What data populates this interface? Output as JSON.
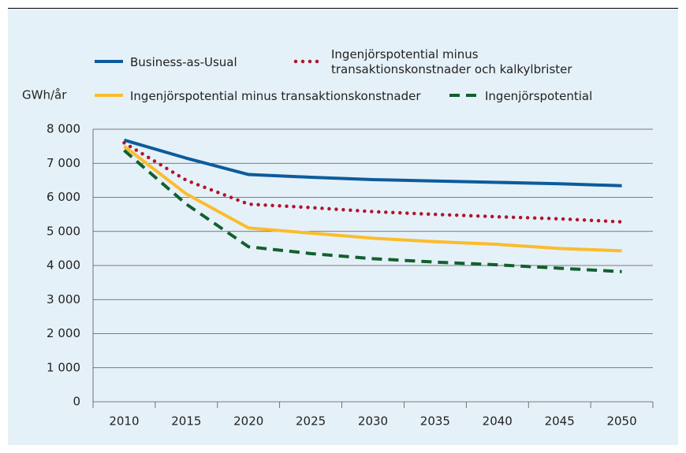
{
  "chart_data": {
    "type": "line",
    "y_label": "GWh/år",
    "categories": [
      "2010",
      "2015",
      "2020",
      "2025",
      "2030",
      "2035",
      "2040",
      "2045",
      "2050"
    ],
    "series": [
      {
        "name": "Business-as-Usual",
        "color": "#0d5b9c",
        "style": "solid",
        "values": [
          7680,
          7150,
          6670,
          6590,
          6520,
          6480,
          6440,
          6400,
          6340
        ]
      },
      {
        "name": "Ingenjörspotential minus transaktionskonstnader och kalkylbrister",
        "color": "#b3142c",
        "style": "dotted",
        "values": [
          7600,
          6500,
          5800,
          5700,
          5580,
          5500,
          5430,
          5370,
          5280
        ]
      },
      {
        "name": "Ingenjörspotential minus transaktionskonstnader",
        "color": "#fbbc2c",
        "style": "solid",
        "values": [
          7500,
          6100,
          5100,
          4950,
          4800,
          4700,
          4620,
          4500,
          4430
        ]
      },
      {
        "name": "Ingenjörspotential",
        "color": "#12602e",
        "style": "dashed",
        "values": [
          7380,
          5800,
          4550,
          4350,
          4200,
          4100,
          4020,
          3920,
          3820
        ]
      }
    ],
    "ylim": [
      0,
      8000
    ],
    "yticks": [
      0,
      {
        "value": 1000,
        "label": "1 000"
      },
      {
        "value": 2000,
        "label": "2 000"
      },
      {
        "value": 3000,
        "label": "3 000"
      },
      {
        "value": 4000,
        "label": "4 000"
      },
      {
        "value": 5000,
        "label": "5 000"
      },
      {
        "value": 6000,
        "label": "6 000"
      },
      {
        "value": 7000,
        "label": "7 000"
      },
      {
        "value": 8000,
        "label": "8 000"
      }
    ],
    "grid": true
  }
}
